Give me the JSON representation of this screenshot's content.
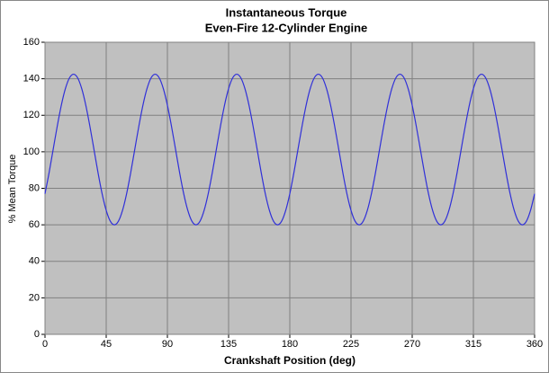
{
  "chart_data": {
    "type": "line",
    "title": "Instantaneous Torque",
    "subtitle": "Even-Fire 12-Cylinder Engine",
    "x_label": "Crankshaft Position (deg)",
    "y_label": "% Mean Torque",
    "x": [
      0,
      3,
      6,
      9,
      12,
      15,
      18,
      21,
      24,
      27,
      30,
      33,
      36,
      39,
      42,
      45,
      48,
      51,
      54,
      57,
      60,
      63,
      66,
      69,
      72,
      75,
      78,
      81,
      84,
      87,
      90,
      93,
      96,
      99,
      102,
      105,
      108,
      111,
      114,
      117,
      120,
      123,
      126,
      129,
      132,
      135,
      138,
      141,
      144,
      147,
      150,
      153,
      156,
      159,
      162,
      165,
      168,
      171,
      174,
      177,
      180,
      183,
      186,
      189,
      192,
      195,
      198,
      201,
      204,
      207,
      210,
      213,
      216,
      219,
      222,
      225,
      228,
      231,
      234,
      237,
      240,
      243,
      246,
      249,
      252,
      255,
      258,
      261,
      264,
      267,
      270,
      273,
      276,
      279,
      282,
      285,
      288,
      291,
      294,
      297,
      300,
      303,
      306,
      309,
      312,
      315,
      318,
      321,
      324,
      327,
      330,
      333,
      336,
      339,
      342,
      345,
      348,
      351,
      354,
      357,
      360
    ],
    "series": [
      {
        "color": "#3030d8",
        "values": [
          77,
          88.5,
          101.3,
          114,
          125.5,
          134.6,
          140.5,
          142.5,
          140.5,
          134.6,
          125.5,
          114,
          101.3,
          88.5,
          77,
          67.9,
          62,
          60,
          62,
          67.9,
          77,
          88.5,
          101.3,
          114,
          125.5,
          134.6,
          140.5,
          142.5,
          140.5,
          134.6,
          125.5,
          114,
          101.3,
          88.5,
          77,
          67.9,
          62,
          60,
          62,
          67.9,
          77,
          88.5,
          101.3,
          114,
          125.5,
          134.6,
          140.5,
          142.5,
          140.5,
          134.6,
          125.5,
          114,
          101.3,
          88.5,
          77,
          67.9,
          62,
          60,
          62,
          67.9,
          77,
          88.5,
          101.3,
          114,
          125.5,
          134.6,
          140.5,
          142.5,
          140.5,
          134.6,
          125.5,
          114,
          101.3,
          88.5,
          77,
          67.9,
          62,
          60,
          62,
          67.9,
          77,
          88.5,
          101.3,
          114,
          125.5,
          134.6,
          140.5,
          142.5,
          140.5,
          134.6,
          125.5,
          114,
          101.3,
          88.5,
          77,
          67.9,
          62,
          60,
          62,
          67.9,
          77,
          88.5,
          101.3,
          114,
          125.5,
          134.6,
          140.5,
          142.5,
          140.5,
          134.6,
          125.5,
          114,
          101.3,
          88.5,
          77,
          67.9,
          62,
          60,
          62,
          67.9,
          77
        ]
      }
    ],
    "xlim": [
      0,
      360
    ],
    "xticks": [
      0,
      45,
      90,
      135,
      180,
      225,
      270,
      315,
      360
    ],
    "ylim": [
      0,
      160
    ],
    "yticks": [
      0,
      20,
      40,
      60,
      80,
      100,
      120,
      140,
      160
    ],
    "grid": true,
    "plot_background": "#c0c0c0"
  }
}
